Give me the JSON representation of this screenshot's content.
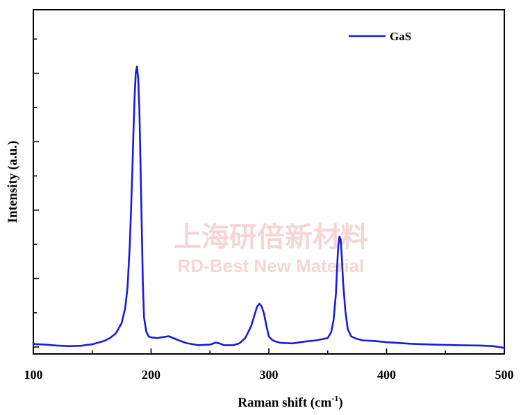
{
  "chart_data": {
    "type": "line",
    "title": "",
    "xlabel": "Raman shift (cm",
    "xlabel_sup": "-1",
    "xlabel_suffix": ")",
    "ylabel": "Intensity (a.u.)",
    "xlim": [
      100,
      500
    ],
    "ylim": [
      0,
      100
    ],
    "x_ticks": [
      "100",
      "200",
      "300",
      "400",
      "500"
    ],
    "y_ticks_shown": false,
    "grid": false,
    "legend_position": "top-right",
    "series": [
      {
        "name": "GaS",
        "color": "#1a1adc",
        "x": [
          100,
          110,
          120,
          130,
          140,
          150,
          160,
          165,
          170,
          175,
          178,
          180,
          182,
          184,
          185,
          186,
          187,
          188,
          189,
          190,
          191,
          192,
          193,
          194,
          196,
          198,
          200,
          205,
          210,
          215,
          220,
          225,
          230,
          240,
          250,
          255,
          258,
          262,
          270,
          275,
          280,
          285,
          288,
          290,
          292,
          294,
          296,
          298,
          300,
          303,
          306,
          310,
          320,
          330,
          340,
          350,
          353,
          355,
          357,
          358,
          359,
          360,
          361,
          362,
          363,
          365,
          367,
          370,
          375,
          380,
          390,
          400,
          420,
          440,
          460,
          480,
          490,
          500
        ],
        "y": [
          1.0,
          0.8,
          0.5,
          0.3,
          0.4,
          0.9,
          2.0,
          3.0,
          4.5,
          8,
          13,
          20,
          35,
          58,
          72,
          84,
          92,
          94,
          90,
          80,
          62,
          42,
          22,
          10,
          5,
          3.5,
          3.2,
          3.0,
          3.3,
          3.6,
          2.8,
          2.0,
          1.3,
          0.6,
          0.8,
          1.5,
          1.2,
          0.6,
          0.6,
          1.2,
          3.0,
          7,
          11,
          13.5,
          14.5,
          13.5,
          11,
          7,
          3.5,
          2.3,
          1.8,
          1.4,
          1.2,
          1.8,
          2.2,
          3.0,
          5,
          9,
          18,
          27,
          34,
          37,
          36,
          30,
          22,
          12,
          6,
          3.5,
          2.7,
          2.2,
          2.0,
          1.6,
          1.1,
          0.8,
          0.6,
          0.5,
          0.3,
          -0.3
        ]
      }
    ]
  },
  "watermark": {
    "line1": "上海研倍新材料",
    "line2": "RD-Best New Material"
  }
}
